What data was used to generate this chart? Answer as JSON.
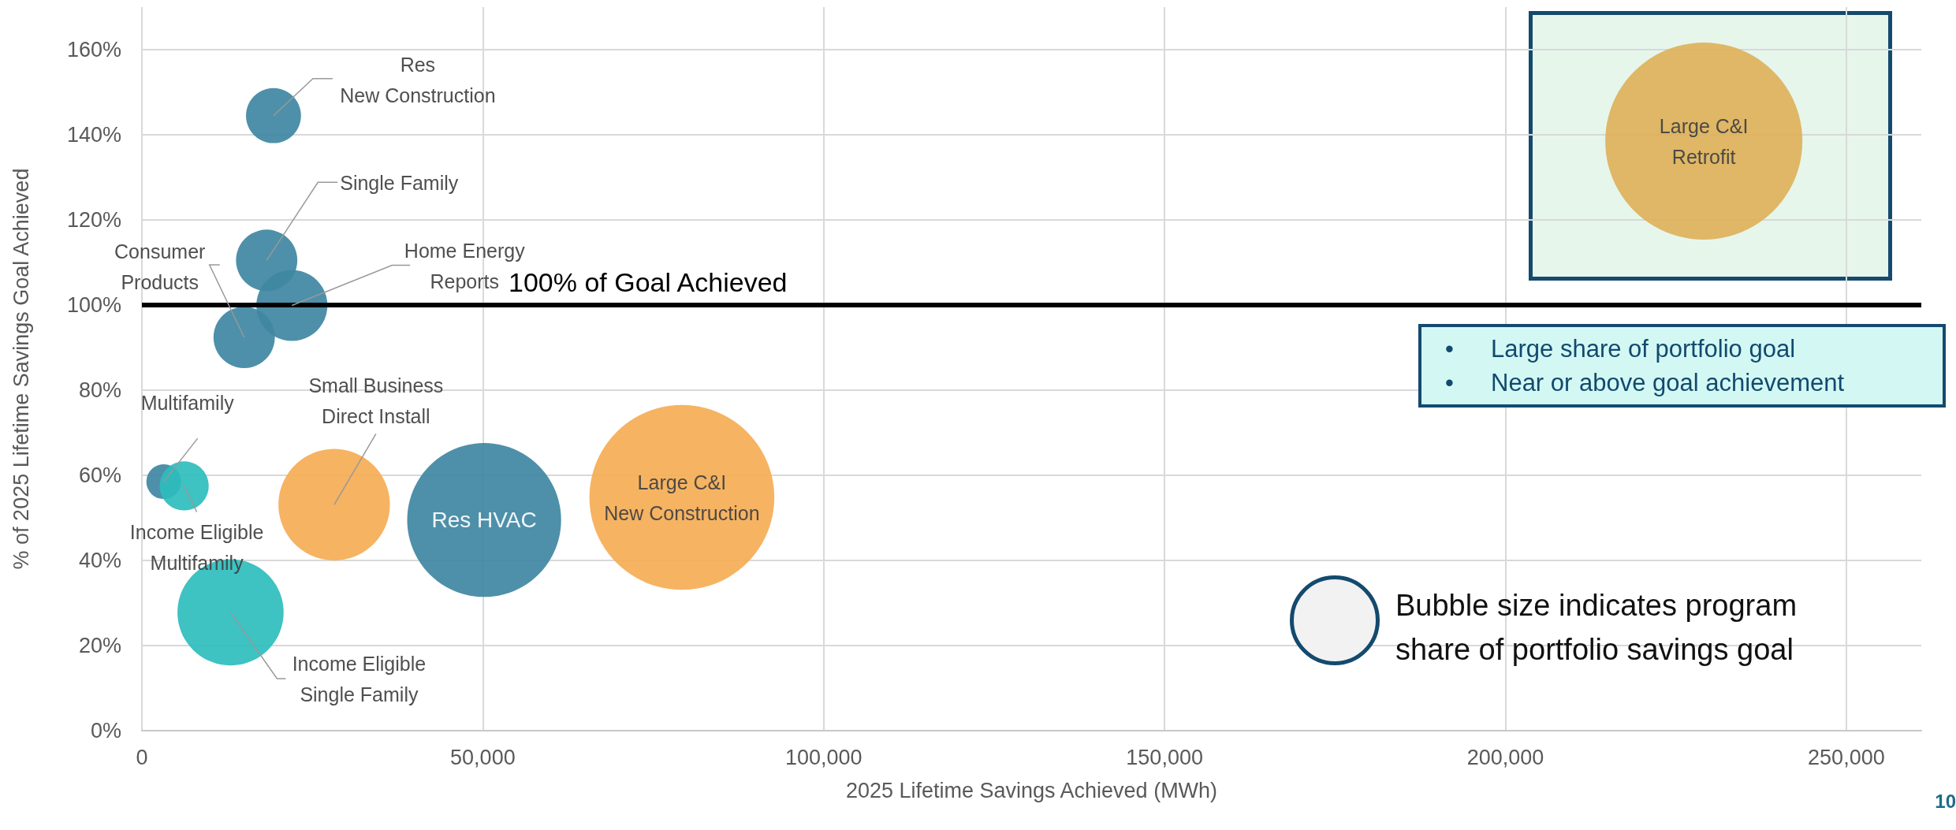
{
  "chart_data": {
    "type": "bubble",
    "xlabel": "2025 Lifetime Savings Achieved (MWh)",
    "ylabel": "% of 2025 Lifetime Savings Goal Achieved",
    "x": [
      19300,
      18300,
      22000,
      15000,
      3200,
      6200,
      28200,
      50200,
      79200,
      13000,
      229100
    ],
    "values": [
      144.5,
      110.5,
      99.9,
      92.4,
      58.5,
      57.5,
      53.1,
      49.5,
      54.8,
      27.8,
      138.5
    ],
    "sizes": [
      0.078,
      0.097,
      0.13,
      0.097,
      0.031,
      0.062,
      0.32,
      0.61,
      0.88,
      0.29,
      1
    ],
    "colors": [
      "#3f87a2",
      "#3f87a2",
      "#3f87a2",
      "#3f87a2",
      "#3f87a2",
      "#2ebdbd",
      "#f5ad55",
      "#3f87a2",
      "#f5ad55",
      "#2ebdbd",
      "#deb15a"
    ],
    "xlim": [
      0,
      261000
    ],
    "xticks": [
      0,
      {
        "value": 50000,
        "label": "50,000"
      },
      {
        "value": 100000,
        "label": "100,000"
      },
      {
        "value": 150000,
        "label": "150,000"
      },
      {
        "value": 200000,
        "label": "200,000"
      },
      {
        "value": 250000,
        "label": "250,000"
      }
    ],
    "ylim": [
      0,
      170
    ],
    "yticks": [
      {
        "value": 0,
        "label": "0%"
      },
      {
        "value": 20,
        "label": "20%"
      },
      {
        "value": 40,
        "label": "40%"
      },
      {
        "value": 60,
        "label": "60%"
      },
      {
        "value": 80,
        "label": "80%"
      },
      {
        "value": 100,
        "label": "100%"
      },
      {
        "value": 120,
        "label": "120%"
      },
      {
        "value": 140,
        "label": "140%"
      },
      {
        "value": 160,
        "label": "160%"
      }
    ],
    "grid": true,
    "ref_lines": [
      {
        "axis": "y",
        "value": 100,
        "label": "100% of Goal Achieved",
        "color": "#000000"
      }
    ],
    "annotations": [
      {
        "text": "Res\nNew Construction",
        "x": 19300,
        "y": 144.5
      },
      {
        "text": "Single Family",
        "x": 18300,
        "y": 110.5
      },
      {
        "text": "Home Energy\nReports",
        "x": 22000,
        "y": 99.9
      },
      {
        "text": "Consumer\nProducts",
        "x": 15000,
        "y": 92.4
      },
      {
        "text": "Multifamily",
        "x": 3200,
        "y": 58.5
      },
      {
        "text": "Income Eligible\nMultifamily",
        "x": 6200,
        "y": 57.5
      },
      {
        "text": "Small Business\nDirect Install",
        "x": 28200,
        "y": 53.1
      },
      {
        "text": "Res HVAC",
        "x": 50200,
        "y": 49.5
      },
      {
        "text": "Large C&I\nNew Construction",
        "x": 79200,
        "y": 54.8
      },
      {
        "text": "Income Eligible\nSingle Family",
        "x": 13000,
        "y": 27.8
      },
      {
        "text": "Large C&I\nRetrofit",
        "x": 229100,
        "y": 138.5
      },
      "• Large share of portfolio goal",
      "• Near or above goal achievement",
      "Bubble size indicates program share of portfolio savings goal",
      "10"
    ]
  }
}
